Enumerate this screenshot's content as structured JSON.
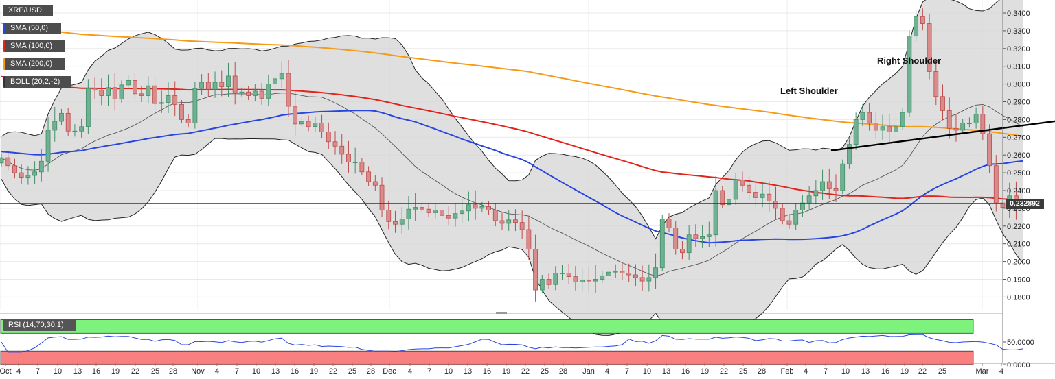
{
  "chart_data": [
    {
      "type": "candlestick",
      "title": "XRP/USD",
      "legend": [
        {
          "label": "XRP/USD",
          "color": "#4d4d4d"
        },
        {
          "label": "SMA (50,0)",
          "color": "#2845e0"
        },
        {
          "label": "SMA (100,0)",
          "color": "#e2231a"
        },
        {
          "label": "SMA (200,0)",
          "color": "#f59b18"
        },
        {
          "label": "BOLL (20,2,-2)",
          "color": "#333333"
        }
      ],
      "current_price_label": "0.232892",
      "ylim": [
        0.17,
        0.347
      ],
      "y_ticks": [
        "0.3400",
        "0.3300",
        "0.3200",
        "0.3100",
        "0.3000",
        "0.2900",
        "0.2800",
        "0.2700",
        "0.2600",
        "0.2500",
        "0.2400",
        "0.2300",
        "0.2200",
        "0.2100",
        "0.2000",
        "0.1900",
        "0.1800"
      ],
      "x_ticks": [
        "Oct",
        "4",
        "7",
        "10",
        "13",
        "16",
        "19",
        "22",
        "25",
        "28",
        "Nov",
        "4",
        "7",
        "10",
        "13",
        "16",
        "19",
        "22",
        "25",
        "28",
        "Dec",
        "4",
        "7",
        "10",
        "13",
        "16",
        "19",
        "22",
        "25",
        "28",
        "Jan",
        "4",
        "7",
        "10",
        "13",
        "16",
        "19",
        "22",
        "25",
        "28",
        "Feb",
        "4",
        "7",
        "10",
        "13",
        "16",
        "19",
        "22",
        "25",
        "Mar",
        "4"
      ],
      "annotations": [
        "Left Shoulder",
        "Right Shoulder"
      ],
      "neckline": [
        [
          0.2625
        ],
        [
          0.2775
        ]
      ],
      "close": [
        0.2585,
        0.254,
        0.25,
        0.2475,
        0.2485,
        0.2505,
        0.2565,
        0.274,
        0.279,
        0.2835,
        0.2735,
        0.2735,
        0.276,
        0.2975,
        0.2965,
        0.2935,
        0.298,
        0.2915,
        0.2995,
        0.302,
        0.2945,
        0.2935,
        0.299,
        0.289,
        0.2895,
        0.2935,
        0.2885,
        0.28,
        0.278,
        0.2975,
        0.301,
        0.297,
        0.301,
        0.2985,
        0.3045,
        0.295,
        0.2955,
        0.2935,
        0.296,
        0.292,
        0.3,
        0.303,
        0.306,
        0.2875,
        0.2775,
        0.279,
        0.276,
        0.278,
        0.273,
        0.2675,
        0.265,
        0.2605,
        0.256,
        0.256,
        0.2505,
        0.245,
        0.243,
        0.229,
        0.2225,
        0.221,
        0.224,
        0.2295,
        0.2305,
        0.2295,
        0.2275,
        0.229,
        0.226,
        0.2245,
        0.227,
        0.2285,
        0.232,
        0.23,
        0.231,
        0.229,
        0.223,
        0.2215,
        0.2235,
        0.222,
        0.218,
        0.207,
        0.184,
        0.19,
        0.187,
        0.1935,
        0.1935,
        0.1915,
        0.1885,
        0.1895,
        0.189,
        0.19,
        0.192,
        0.194,
        0.1945,
        0.1935,
        0.1925,
        0.191,
        0.189,
        0.191,
        0.1965,
        0.224,
        0.219,
        0.207,
        0.205,
        0.215,
        0.213,
        0.214,
        0.215,
        0.24,
        0.232,
        0.235,
        0.246,
        0.243,
        0.239,
        0.236,
        0.238,
        0.234,
        0.23,
        0.223,
        0.221,
        0.229,
        0.233,
        0.237,
        0.24,
        0.245,
        0.241,
        0.24,
        0.255,
        0.266,
        0.28,
        0.284,
        0.278,
        0.274,
        0.276,
        0.273,
        0.276,
        0.284,
        0.327,
        0.338,
        0.334,
        0.307,
        0.293,
        0.285,
        0.275,
        0.274,
        0.278,
        0.278,
        0.283,
        0.272,
        0.254,
        0.233,
        0.2305,
        0.237,
        0.23,
        0.233
      ],
      "rsi": {
        "label": "RSI (14,70,30,1)",
        "y_ticks": [
          "50.0000",
          "0.0000"
        ],
        "overbought": 70,
        "oversold": 30
      }
    }
  ]
}
